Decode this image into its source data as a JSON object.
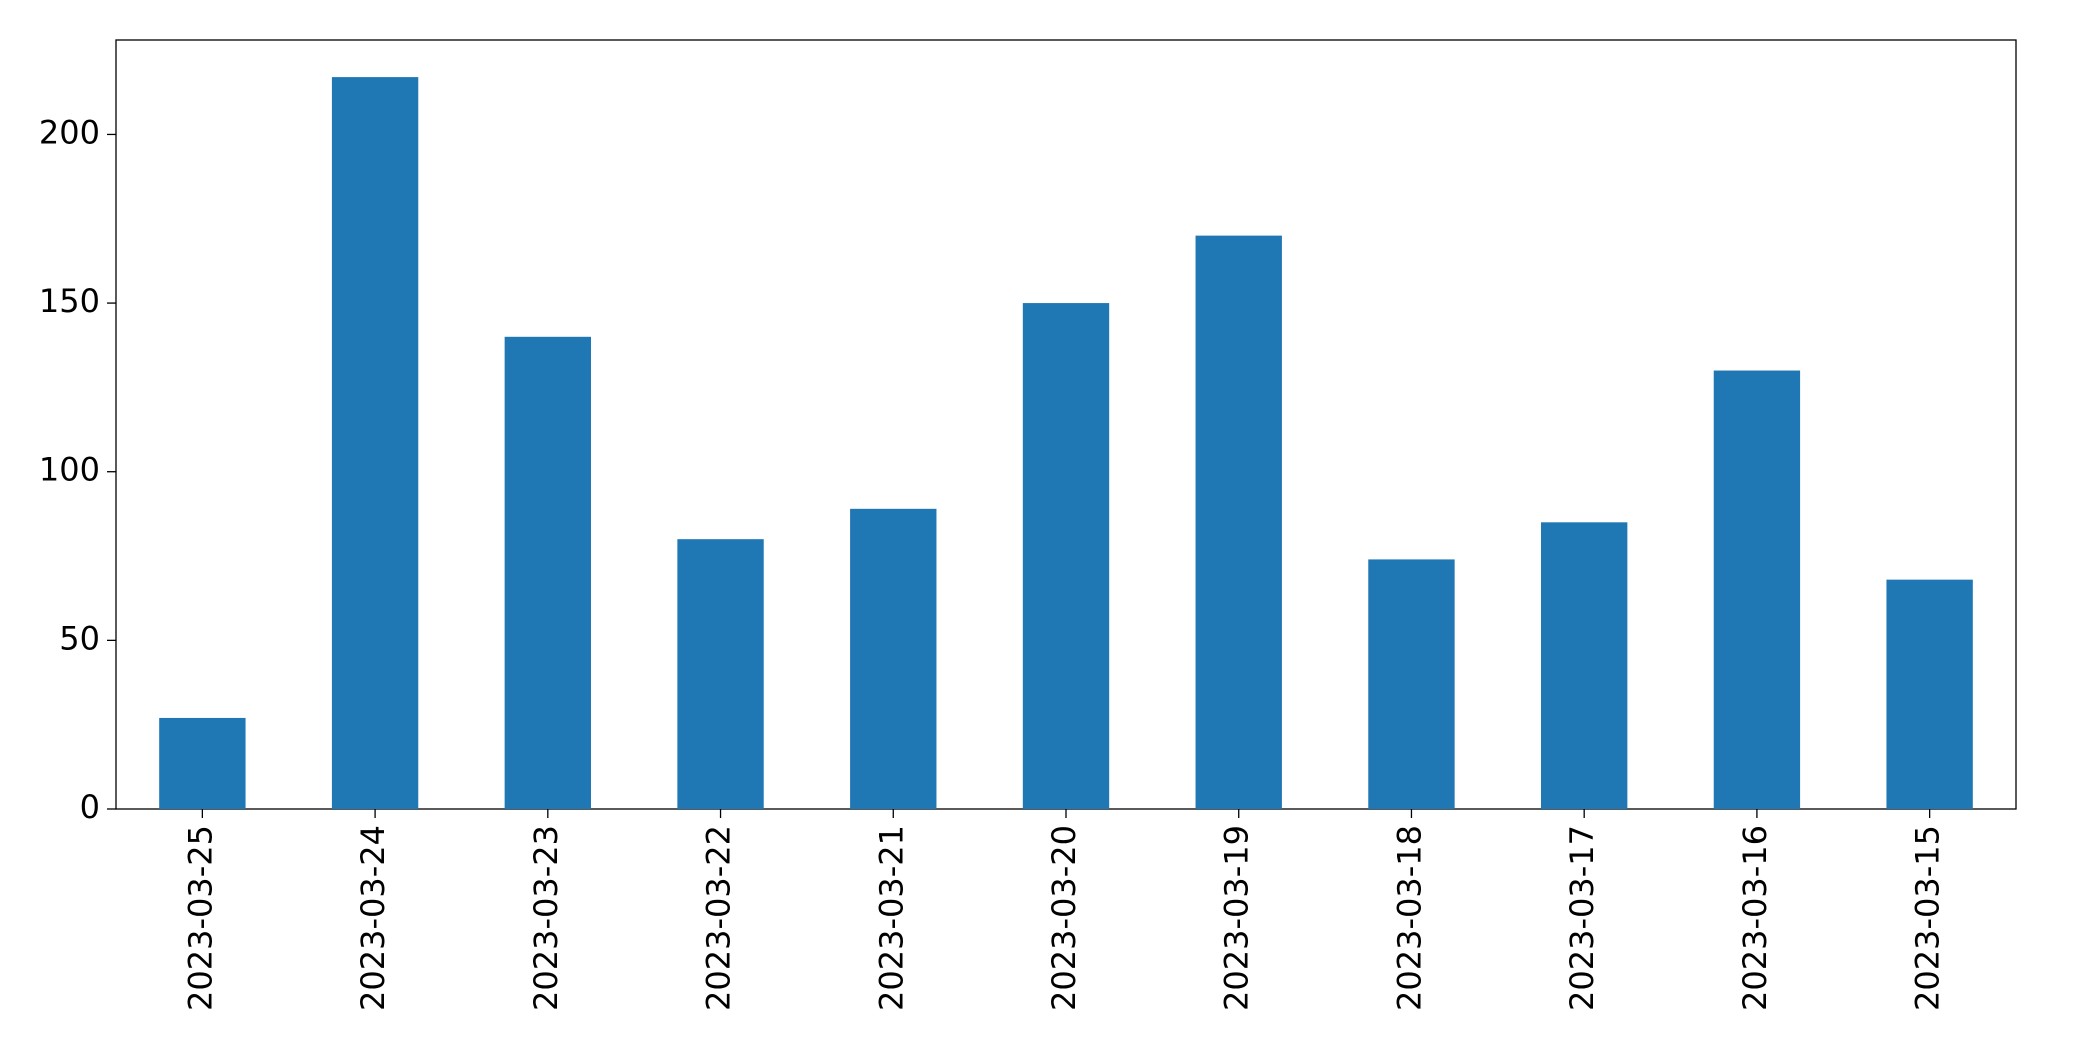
{
  "chart_data": {
    "type": "bar",
    "categories": [
      "2023-03-25",
      "2023-03-24",
      "2023-03-23",
      "2023-03-22",
      "2023-03-21",
      "2023-03-20",
      "2023-03-19",
      "2023-03-18",
      "2023-03-17",
      "2023-03-16",
      "2023-03-15"
    ],
    "values": [
      27,
      217,
      140,
      80,
      89,
      150,
      170,
      74,
      85,
      130,
      68
    ],
    "color": "#1f77b4",
    "ylim": [
      0,
      228
    ],
    "yticks": [
      0,
      50,
      100,
      150,
      200
    ],
    "grid": false
  }
}
